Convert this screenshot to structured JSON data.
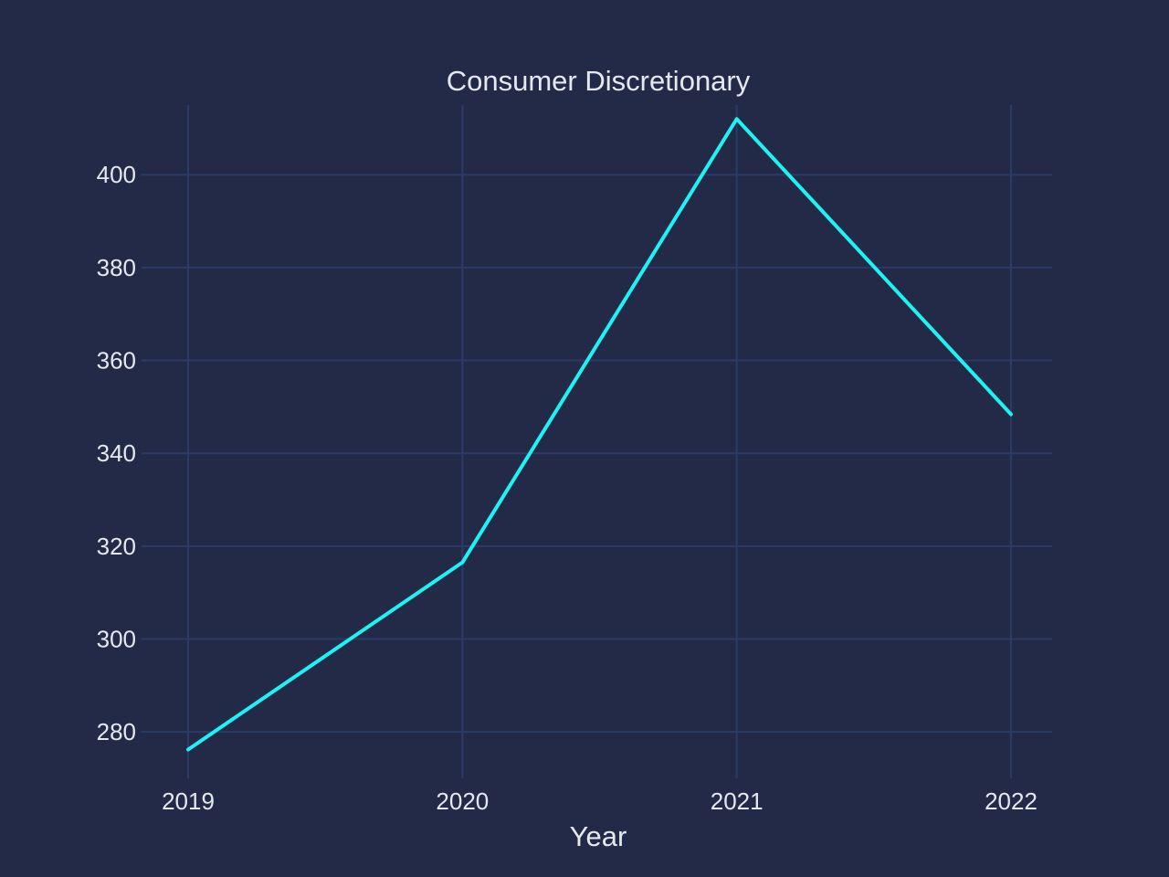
{
  "chart_data": {
    "type": "line",
    "title": "Consumer Discretionary",
    "xlabel": "Year",
    "ylabel": "",
    "x": [
      "2019",
      "2020",
      "2021",
      "2022"
    ],
    "series": [
      {
        "values": [
          276.2,
          316.5,
          412.0,
          348.4
        ]
      }
    ],
    "ylim": [
      270,
      415
    ],
    "yticks": [
      280,
      300,
      320,
      340,
      360,
      380,
      400
    ],
    "grid": true,
    "legend": "none"
  },
  "colors": {
    "background": "#222a47",
    "grid": "#2c3a66",
    "text": "#e6e8ef",
    "line": "#1ef2f2"
  }
}
